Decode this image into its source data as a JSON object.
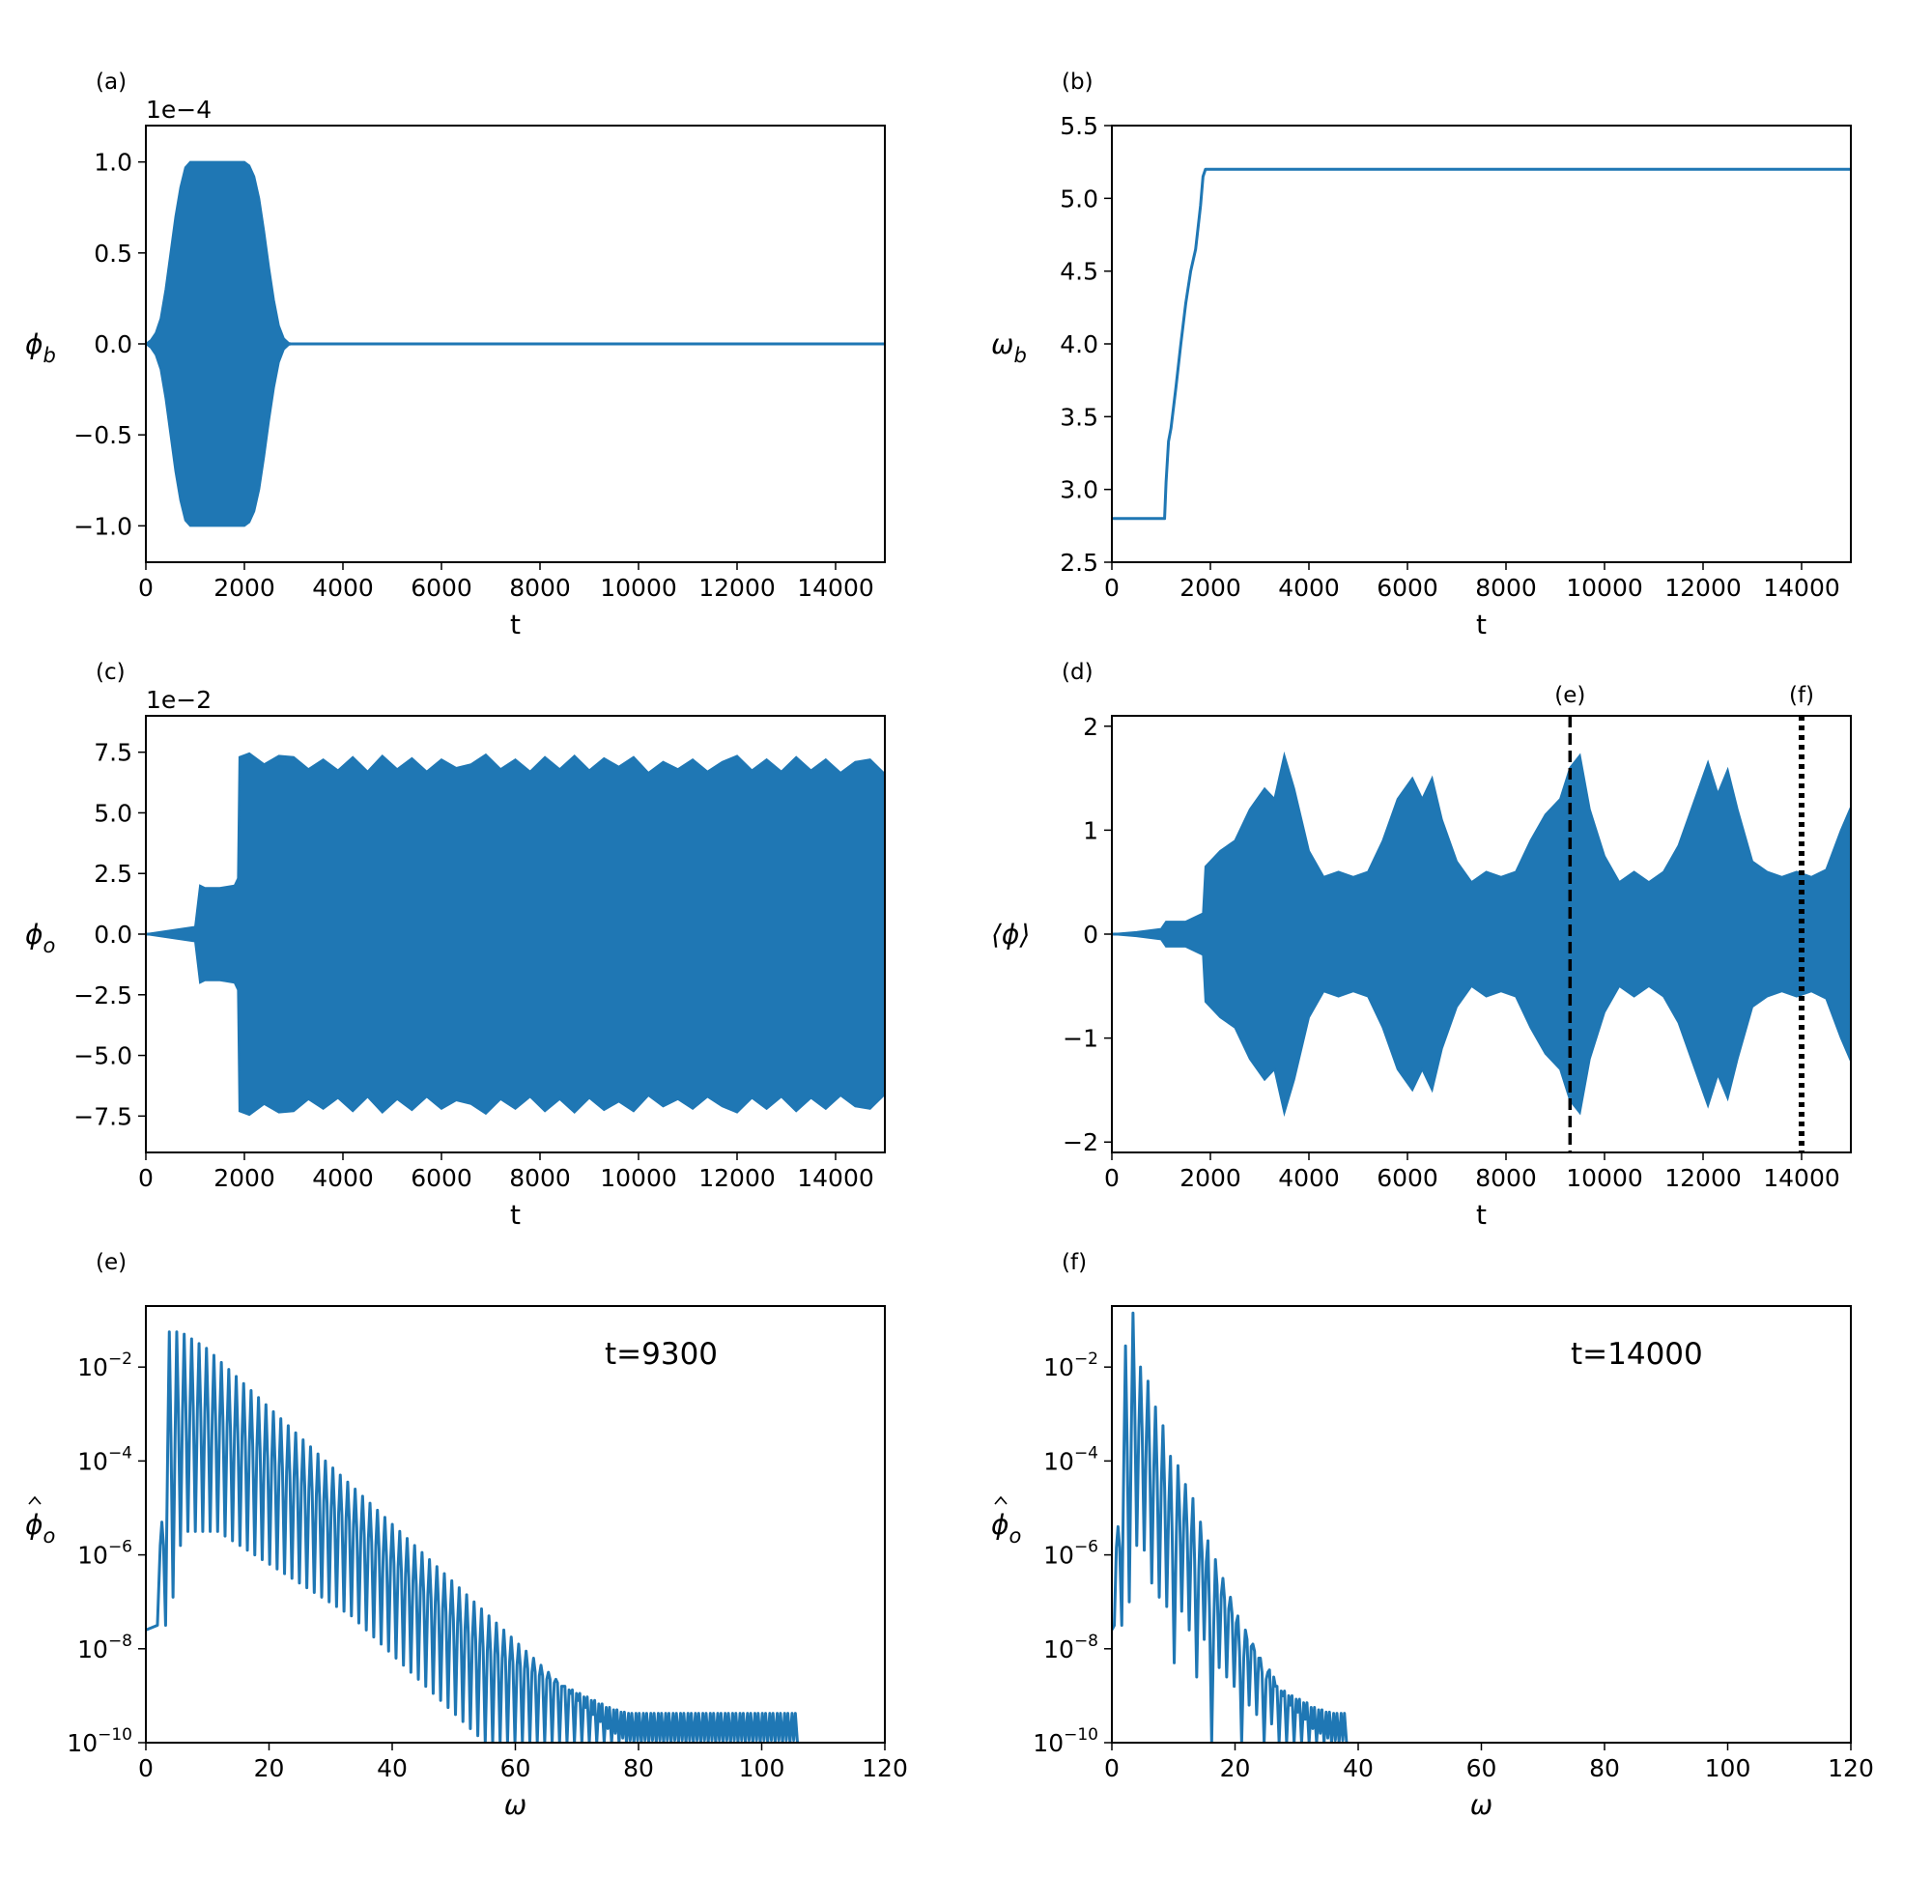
{
  "figure": {
    "color": "#1f77b4"
  },
  "chart_data": [
    {
      "id": "a",
      "panel_label": "(a)",
      "type": "area",
      "xlabel": "t",
      "ylabel": "ϕb",
      "ylabel_main": "ϕ",
      "ylabel_sub": "b",
      "ylabel_hat": false,
      "offset_label": "1e−4",
      "xlim": [
        0,
        15000
      ],
      "ylim": [
        -1.2,
        1.2
      ],
      "yscale": "linear",
      "xticks": [
        0,
        2000,
        4000,
        6000,
        8000,
        10000,
        12000,
        14000
      ],
      "xtick_labels": [
        "0",
        "2000",
        "4000",
        "6000",
        "8000",
        "10000",
        "12000",
        "14000"
      ],
      "yticks": [
        -1.0,
        -0.5,
        0.0,
        0.5,
        1.0
      ],
      "ytick_labels": [
        "−1.0",
        "−0.5",
        "0.0",
        "0.5",
        "1.0"
      ],
      "envelope": {
        "t": [
          0,
          100,
          200,
          300,
          400,
          500,
          600,
          700,
          800,
          900,
          1000,
          1500,
          2000,
          2100,
          2200,
          2300,
          2400,
          2500,
          2600,
          2700,
          2800,
          2900,
          3000,
          15000
        ],
        "upper": [
          0,
          0.02,
          0.06,
          0.14,
          0.3,
          0.5,
          0.7,
          0.86,
          0.97,
          1.0,
          1.0,
          1.0,
          1.0,
          0.98,
          0.92,
          0.8,
          0.62,
          0.42,
          0.24,
          0.1,
          0.03,
          0.005,
          0,
          0
        ],
        "lower": [
          0,
          -0.02,
          -0.06,
          -0.14,
          -0.3,
          -0.5,
          -0.7,
          -0.86,
          -0.97,
          -1.0,
          -1.0,
          -1.0,
          -1.0,
          -0.98,
          -0.92,
          -0.8,
          -0.62,
          -0.42,
          -0.24,
          -0.1,
          -0.03,
          -0.005,
          0,
          0
        ]
      }
    },
    {
      "id": "b",
      "panel_label": "(b)",
      "type": "line",
      "xlabel": "t",
      "ylabel": "ωb",
      "ylabel_main": "ω",
      "ylabel_sub": "b",
      "ylabel_hat": false,
      "offset_label": "",
      "xlim": [
        0,
        15000
      ],
      "ylim": [
        2.5,
        5.5
      ],
      "yscale": "linear",
      "xticks": [
        0,
        2000,
        4000,
        6000,
        8000,
        10000,
        12000,
        14000
      ],
      "xtick_labels": [
        "0",
        "2000",
        "4000",
        "6000",
        "8000",
        "10000",
        "12000",
        "14000"
      ],
      "yticks": [
        2.5,
        3.0,
        3.5,
        4.0,
        4.5,
        5.0,
        5.5
      ],
      "ytick_labels": [
        "2.5",
        "3.0",
        "3.5",
        "4.0",
        "4.5",
        "5.0",
        "5.5"
      ],
      "series": [
        {
          "x": [
            0,
            1070,
            1100,
            1150,
            1200,
            1300,
            1400,
            1500,
            1600,
            1700,
            1800,
            1850,
            1900,
            1950,
            2000,
            15000
          ],
          "y": [
            2.8,
            2.8,
            3.05,
            3.33,
            3.42,
            3.7,
            4.0,
            4.28,
            4.5,
            4.65,
            4.95,
            5.15,
            5.2,
            5.2,
            5.2,
            5.2
          ]
        }
      ]
    },
    {
      "id": "c",
      "panel_label": "(c)",
      "type": "area",
      "xlabel": "t",
      "ylabel": "ϕo",
      "ylabel_main": "ϕ",
      "ylabel_sub": "o",
      "ylabel_hat": false,
      "offset_label": "1e−2",
      "xlim": [
        0,
        15000
      ],
      "ylim": [
        -9.0,
        9.0
      ],
      "yscale": "linear",
      "xticks": [
        0,
        2000,
        4000,
        6000,
        8000,
        10000,
        12000,
        14000
      ],
      "xtick_labels": [
        "0",
        "2000",
        "4000",
        "6000",
        "8000",
        "10000",
        "12000",
        "14000"
      ],
      "yticks": [
        -7.5,
        -5.0,
        -2.5,
        0.0,
        2.5,
        5.0,
        7.5
      ],
      "ytick_labels": [
        "−7.5",
        "−5.0",
        "−2.5",
        "0.0",
        "2.5",
        "5.0",
        "7.5"
      ],
      "envelope": {
        "t": [
          0,
          500,
          1000,
          1100,
          1200,
          1500,
          1800,
          1870,
          1900,
          2100,
          2400,
          2700,
          3000,
          3300,
          3600,
          3900,
          4200,
          4500,
          4800,
          5100,
          5400,
          5700,
          6000,
          6300,
          6600,
          6900,
          7200,
          7500,
          7800,
          8100,
          8400,
          8700,
          9000,
          9300,
          9600,
          9900,
          10200,
          10500,
          10800,
          11100,
          11400,
          11700,
          12000,
          12300,
          12600,
          12900,
          13200,
          13500,
          13800,
          14100,
          14400,
          14700,
          15000
        ],
        "upper": [
          0,
          0.15,
          0.3,
          2.0,
          1.9,
          1.9,
          2.0,
          2.3,
          7.3,
          7.45,
          7.0,
          7.35,
          7.3,
          6.8,
          7.2,
          6.75,
          7.3,
          6.7,
          7.35,
          6.8,
          7.25,
          6.7,
          7.2,
          6.85,
          7.0,
          7.4,
          6.8,
          7.2,
          6.7,
          7.3,
          6.8,
          7.35,
          6.75,
          7.25,
          6.9,
          7.3,
          6.65,
          7.1,
          6.8,
          7.2,
          6.7,
          7.1,
          7.35,
          6.75,
          7.2,
          6.7,
          7.3,
          6.75,
          7.2,
          6.65,
          7.1,
          7.2,
          6.6
        ],
        "lower": [
          0,
          -0.15,
          -0.3,
          -2.0,
          -1.9,
          -1.9,
          -2.0,
          -2.3,
          -7.3,
          -7.45,
          -7.0,
          -7.35,
          -7.3,
          -6.8,
          -7.2,
          -6.75,
          -7.3,
          -6.7,
          -7.35,
          -6.8,
          -7.25,
          -6.7,
          -7.2,
          -6.85,
          -7.0,
          -7.4,
          -6.8,
          -7.2,
          -6.7,
          -7.3,
          -6.8,
          -7.35,
          -6.75,
          -7.25,
          -6.9,
          -7.3,
          -6.65,
          -7.1,
          -6.8,
          -7.2,
          -6.7,
          -7.1,
          -7.35,
          -6.75,
          -7.2,
          -6.7,
          -7.3,
          -6.75,
          -7.2,
          -6.65,
          -7.1,
          -7.2,
          -6.6
        ]
      }
    },
    {
      "id": "d",
      "panel_label": "(d)",
      "type": "area",
      "xlabel": "t",
      "ylabel": "⟨ϕ⟩",
      "ylabel_main": "⟨ϕ⟩",
      "ylabel_sub": "",
      "ylabel_hat": false,
      "offset_label": "",
      "xlim": [
        0,
        15000
      ],
      "ylim": [
        -2.1,
        2.1
      ],
      "yscale": "linear",
      "xticks": [
        0,
        2000,
        4000,
        6000,
        8000,
        10000,
        12000,
        14000
      ],
      "xtick_labels": [
        "0",
        "2000",
        "4000",
        "6000",
        "8000",
        "10000",
        "12000",
        "14000"
      ],
      "yticks": [
        -2,
        -1,
        0,
        1,
        2
      ],
      "ytick_labels": [
        "−2",
        "−1",
        "0",
        "1",
        "2"
      ],
      "envelope": {
        "t": [
          0,
          500,
          1000,
          1100,
          1500,
          1850,
          1900,
          2200,
          2500,
          2800,
          3100,
          3300,
          3500,
          3700,
          4000,
          4300,
          4600,
          4900,
          5200,
          5500,
          5800,
          6100,
          6300,
          6500,
          6700,
          7000,
          7300,
          7600,
          7900,
          8200,
          8500,
          8800,
          9100,
          9300,
          9500,
          9700,
          10000,
          10300,
          10600,
          10900,
          11200,
          11500,
          11800,
          12100,
          12300,
          12500,
          12700,
          13000,
          13300,
          13600,
          13900,
          14200,
          14500,
          14800,
          15000
        ],
        "upper": [
          0,
          0.02,
          0.05,
          0.12,
          0.12,
          0.2,
          0.65,
          0.8,
          0.9,
          1.2,
          1.4,
          1.3,
          1.72,
          1.4,
          0.8,
          0.55,
          0.6,
          0.55,
          0.6,
          0.9,
          1.3,
          1.5,
          1.3,
          1.5,
          1.1,
          0.7,
          0.5,
          0.6,
          0.55,
          0.6,
          0.9,
          1.15,
          1.3,
          1.6,
          1.72,
          1.2,
          0.75,
          0.5,
          0.6,
          0.5,
          0.6,
          0.85,
          1.25,
          1.65,
          1.35,
          1.58,
          1.2,
          0.7,
          0.6,
          0.55,
          0.6,
          0.55,
          0.62,
          1.0,
          1.22
        ],
        "lower": [
          0,
          -0.02,
          -0.05,
          -0.12,
          -0.12,
          -0.2,
          -0.65,
          -0.8,
          -0.9,
          -1.2,
          -1.4,
          -1.3,
          -1.72,
          -1.4,
          -0.8,
          -0.55,
          -0.6,
          -0.55,
          -0.6,
          -0.9,
          -1.3,
          -1.5,
          -1.3,
          -1.5,
          -1.1,
          -0.7,
          -0.5,
          -0.6,
          -0.55,
          -0.6,
          -0.9,
          -1.15,
          -1.3,
          -1.6,
          -1.72,
          -1.2,
          -0.75,
          -0.5,
          -0.6,
          -0.5,
          -0.6,
          -0.85,
          -1.25,
          -1.65,
          -1.35,
          -1.58,
          -1.2,
          -0.7,
          -0.6,
          -0.55,
          -0.6,
          -0.55,
          -0.62,
          -1.0,
          -1.22
        ]
      },
      "vlines": [
        {
          "x": 9300,
          "style": "dashed",
          "label": "(e)"
        },
        {
          "x": 14000,
          "style": "dotted",
          "label": "(f)"
        }
      ]
    },
    {
      "id": "e",
      "panel_label": "(e)",
      "type": "line",
      "xlabel": "ω",
      "ylabel": "ϕ̂o",
      "ylabel_main": "ϕ",
      "ylabel_sub": "o",
      "ylabel_hat": true,
      "offset_label": "",
      "annotation": "t=9300",
      "xlim": [
        0,
        120
      ],
      "ylim": [
        -10,
        -0.7
      ],
      "yscale": "log",
      "xticks": [
        0,
        20,
        40,
        60,
        80,
        100,
        120
      ],
      "xtick_labels": [
        "0",
        "20",
        "40",
        "60",
        "80",
        "100",
        "120"
      ],
      "yticks": [
        -10,
        -8,
        -6,
        -4,
        -2
      ],
      "ytick_labels": [
        "10",
        "10",
        "10",
        "10",
        "10"
      ],
      "ytick_exponents": [
        "−10",
        "−8",
        "−6",
        "−4",
        "−2"
      ],
      "spectrum": {
        "spacing": 1.2,
        "peak_start": 2.6,
        "peak_stop": 105.2,
        "peak_log": [
          -5.3,
          -1.25,
          -1.25,
          -1.3,
          -1.4,
          -1.5,
          -1.6,
          -1.75,
          -1.9,
          -2.05,
          -2.2,
          -2.35,
          -2.5,
          -2.65,
          -2.8,
          -2.95,
          -3.1,
          -3.25,
          -3.4,
          -3.55,
          -3.7,
          -3.85,
          -4.0,
          -4.15,
          -4.3,
          -4.45,
          -4.6,
          -4.75,
          -4.9,
          -5.05,
          -5.2,
          -5.35,
          -5.5,
          -5.65,
          -5.8,
          -5.95,
          -6.1,
          -6.25,
          -6.4,
          -6.55,
          -6.7,
          -6.85,
          -7.0,
          -7.15,
          -7.3,
          -7.45,
          -7.6,
          -7.75,
          -7.9,
          -8.05,
          -8.2,
          -8.35,
          -8.5,
          -8.65,
          -8.8,
          -8.95,
          -9.1,
          -9.25,
          -9.4,
          -9.55,
          -9.7,
          -9.8,
          -9.9,
          -9.95,
          -9.95,
          -9.95,
          -9.95,
          -9.95,
          -9.95,
          -9.95,
          -9.95,
          -9.95,
          -9.95,
          -9.95,
          -9.95,
          -9.95,
          -9.95,
          -9.95,
          -9.95,
          -9.95,
          -9.95,
          -9.95,
          -9.95,
          -9.95,
          -9.95,
          -9.95
        ],
        "valley_log": [
          -7.5,
          -6.9,
          -5.8,
          -5.5,
          -5.5,
          -5.5,
          -5.5,
          -5.5,
          -5.6,
          -5.7,
          -5.8,
          -5.9,
          -6.0,
          -6.1,
          -6.2,
          -6.3,
          -6.4,
          -6.5,
          -6.6,
          -6.7,
          -6.8,
          -6.9,
          -7.0,
          -7.1,
          -7.2,
          -7.3,
          -7.45,
          -7.6,
          -7.75,
          -7.9,
          -8.05,
          -8.2,
          -8.35,
          -8.5,
          -8.65,
          -8.8,
          -8.95,
          -9.1,
          -9.25,
          -9.4,
          -9.55,
          -9.7,
          -9.85,
          -10.0,
          -10.0,
          -10.0,
          -10.0,
          -10.0,
          -10.0,
          -10.0,
          -10.0,
          -10.0,
          -10.0,
          -10.0,
          -10.0,
          -10.0,
          -10.0,
          -10.0,
          -10.0,
          -10.0,
          -10.0,
          -10.0,
          -10.0,
          -10.0,
          -10.0,
          -10.0,
          -10.0,
          -10.0,
          -10.0,
          -10.0,
          -10.0,
          -10.0,
          -10.0,
          -10.0,
          -10.0,
          -10.0,
          -10.0,
          -10.0,
          -10.0,
          -10.0,
          -10.0,
          -10.0,
          -10.0,
          -10.0,
          -10.0,
          -10.0
        ]
      }
    },
    {
      "id": "f",
      "panel_label": "(f)",
      "type": "line",
      "xlabel": "ω",
      "ylabel": "ϕ̂o",
      "ylabel_main": "ϕ",
      "ylabel_sub": "o",
      "ylabel_hat": true,
      "offset_label": "",
      "annotation": "t=14000",
      "xlim": [
        0,
        120
      ],
      "ylim": [
        -10,
        -0.7
      ],
      "yscale": "log",
      "xticks": [
        0,
        20,
        40,
        60,
        80,
        100,
        120
      ],
      "xtick_labels": [
        "0",
        "20",
        "40",
        "60",
        "80",
        "100",
        "120"
      ],
      "yticks": [
        -10,
        -8,
        -6,
        -4,
        -2
      ],
      "ytick_labels": [
        "10",
        "10",
        "10",
        "10",
        "10"
      ],
      "ytick_exponents": [
        "−10",
        "−8",
        "−6",
        "−4",
        "−2"
      ],
      "spectrum": {
        "spacing": 1.2,
        "peak_start": 1.0,
        "peak_stop": 37.5,
        "peak_log": [
          -5.4,
          -1.55,
          -0.85,
          -2.0,
          -2.3,
          -2.85,
          -3.25,
          -3.9,
          -4.1,
          -4.5,
          -4.8,
          -5.3,
          -5.7,
          -6.1,
          -6.5,
          -6.9,
          -7.3,
          -7.6,
          -7.9,
          -8.2,
          -8.5,
          -8.8,
          -9.0,
          -9.2,
          -9.35,
          -9.5,
          -9.7,
          -9.8,
          -9.9,
          -9.95,
          -9.95
        ],
        "valley_log": [
          -7.5,
          -7.0,
          -5.8,
          -5.9,
          -6.6,
          -6.9,
          -7.1,
          -8.3,
          -7.2,
          -7.6,
          -8.6,
          -7.8,
          -10.0,
          -8.4,
          -8.6,
          -8.8,
          -10.0,
          -9.2,
          -9.4,
          -10.0,
          -9.6,
          -10.0,
          -10.0,
          -10.0,
          -10.0,
          -10.0,
          -10.0,
          -10.0,
          -10.0,
          -10.0,
          -10.0
        ]
      }
    }
  ]
}
